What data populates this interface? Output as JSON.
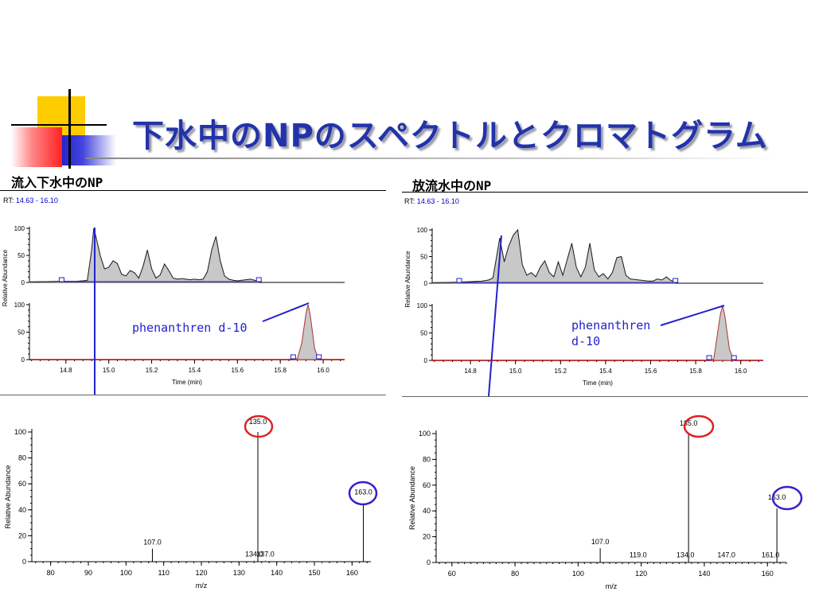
{
  "slide": {
    "title": "下水中のNPのスペクトルとクロマトグラム",
    "colors": {
      "title": "#2233aa",
      "accent_blue": "#2222cc",
      "red_circle": "#dd2222",
      "blue_circle": "#3322cc",
      "chrom_fill": "#c8c8c8",
      "baseline_red": "#aa0000"
    }
  },
  "panels": [
    {
      "heading": "流入下水中のNP",
      "rt_prefix": "RT: ",
      "rt_range": "14.63 - 16.10",
      "annotation": [
        "phenanthren d-10"
      ],
      "spectrum_peak_labels": {
        "highlight_red": "135.0",
        "highlight_blue": "163.0"
      }
    },
    {
      "heading": "放流水中のNP",
      "rt_prefix": "RT: ",
      "rt_range": "14.63 - 16.10",
      "annotation": [
        "phenanthren",
        "d-10"
      ],
      "spectrum_peak_labels": {
        "highlight_red": "135.0",
        "highlight_blue": "163.0"
      }
    }
  ],
  "chart_data": [
    {
      "id": "influent-chromatogram-top",
      "type": "area",
      "xlabel": "Time (min)",
      "ylabel": "Relative Abundance",
      "xlim": [
        14.63,
        16.1
      ],
      "ylim": [
        0,
        100
      ],
      "xticks": [
        14.8,
        15.0,
        15.2,
        15.4,
        15.6,
        15.8,
        16.0
      ],
      "yticks": [
        0,
        50,
        100
      ],
      "x": [
        14.63,
        14.78,
        14.8,
        14.85,
        14.88,
        14.9,
        14.92,
        14.93,
        14.94,
        14.96,
        14.98,
        15.0,
        15.02,
        15.04,
        15.06,
        15.08,
        15.1,
        15.12,
        15.14,
        15.16,
        15.18,
        15.2,
        15.22,
        15.24,
        15.26,
        15.28,
        15.3,
        15.32,
        15.34,
        15.36,
        15.38,
        15.4,
        15.42,
        15.44,
        15.46,
        15.48,
        15.5,
        15.52,
        15.54,
        15.56,
        15.58,
        15.6,
        15.62,
        15.64,
        15.66,
        15.68,
        15.7
      ],
      "y": [
        1,
        2,
        2,
        2,
        3,
        4,
        60,
        100,
        85,
        50,
        25,
        28,
        40,
        35,
        15,
        12,
        22,
        18,
        8,
        30,
        60,
        25,
        8,
        14,
        34,
        22,
        8,
        6,
        7,
        6,
        5,
        6,
        5,
        6,
        20,
        60,
        85,
        40,
        12,
        6,
        4,
        3,
        4,
        5,
        6,
        4,
        3
      ]
    },
    {
      "id": "influent-chromatogram-bottom",
      "type": "line",
      "xlabel": "Time (min)",
      "ylabel": "Relative Abundance",
      "xlim": [
        14.63,
        16.1
      ],
      "ylim": [
        0,
        100
      ],
      "x": [
        14.63,
        15.86,
        15.88,
        15.9,
        15.92,
        15.93,
        15.94,
        15.96,
        15.98,
        16.1
      ],
      "y": [
        0,
        0,
        2,
        30,
        85,
        100,
        80,
        20,
        0,
        0
      ]
    },
    {
      "id": "influent-mass-spectrum",
      "type": "bar",
      "xlabel": "m/z",
      "ylabel": "Relative Abundance",
      "xlim": [
        75,
        165
      ],
      "ylim": [
        0,
        100
      ],
      "xticks": [
        80,
        90,
        100,
        110,
        120,
        130,
        140,
        150,
        160
      ],
      "yticks": [
        0,
        20,
        40,
        60,
        80,
        100
      ],
      "x": [
        107.0,
        134.0,
        135.0,
        137.0,
        163.0
      ],
      "y": [
        10,
        1,
        100,
        1,
        45
      ],
      "labels": [
        "107.0",
        "134.0",
        "135.0",
        "137.0",
        "163.0"
      ]
    },
    {
      "id": "effluent-chromatogram-top",
      "type": "area",
      "xlabel": "Time (min)",
      "ylabel": "Relative Abundance",
      "xlim": [
        14.63,
        16.1
      ],
      "ylim": [
        0,
        100
      ],
      "xticks": [
        14.8,
        15.0,
        15.2,
        15.4,
        15.6,
        15.8,
        16.0
      ],
      "yticks": [
        0,
        50,
        100
      ],
      "x": [
        14.63,
        14.75,
        14.8,
        14.85,
        14.88,
        14.9,
        14.92,
        14.93,
        14.95,
        14.97,
        14.99,
        15.01,
        15.03,
        15.05,
        15.07,
        15.09,
        15.11,
        15.13,
        15.15,
        15.17,
        15.19,
        15.21,
        15.23,
        15.25,
        15.27,
        15.29,
        15.31,
        15.33,
        15.35,
        15.37,
        15.39,
        15.41,
        15.43,
        15.45,
        15.47,
        15.49,
        15.51,
        15.53,
        15.55,
        15.57,
        15.59,
        15.61,
        15.63,
        15.65,
        15.67,
        15.69,
        15.71
      ],
      "y": [
        1,
        2,
        3,
        4,
        6,
        10,
        60,
        85,
        40,
        70,
        90,
        100,
        35,
        15,
        20,
        12,
        30,
        42,
        20,
        12,
        40,
        15,
        45,
        75,
        30,
        12,
        30,
        75,
        25,
        12,
        18,
        8,
        20,
        48,
        50,
        15,
        8,
        7,
        6,
        5,
        4,
        4,
        8,
        6,
        12,
        5,
        3
      ]
    },
    {
      "id": "effluent-chromatogram-bottom",
      "type": "line",
      "xlabel": "Time (min)",
      "ylabel": "Relative Abundance",
      "xlim": [
        14.63,
        16.1
      ],
      "ylim": [
        0,
        100
      ],
      "x": [
        14.63,
        15.86,
        15.88,
        15.89,
        15.91,
        15.92,
        15.93,
        15.95,
        15.97,
        16.1
      ],
      "y": [
        0,
        0,
        2,
        30,
        85,
        100,
        80,
        20,
        0,
        0
      ]
    },
    {
      "id": "effluent-mass-spectrum",
      "type": "bar",
      "xlabel": "m/z",
      "ylabel": "Relative Abundance",
      "xlim": [
        55,
        166
      ],
      "ylim": [
        0,
        100
      ],
      "xticks": [
        60,
        80,
        100,
        120,
        140,
        160
      ],
      "yticks": [
        0,
        20,
        40,
        60,
        80,
        100
      ],
      "x": [
        107.0,
        119.0,
        134.0,
        135.0,
        147.0,
        161.0,
        163.0
      ],
      "y": [
        11,
        1,
        1,
        100,
        1,
        1,
        42
      ],
      "labels": [
        "107.0",
        "119.0",
        "134.0",
        "135.0",
        "147.0",
        "161.0",
        "163.0"
      ]
    }
  ]
}
